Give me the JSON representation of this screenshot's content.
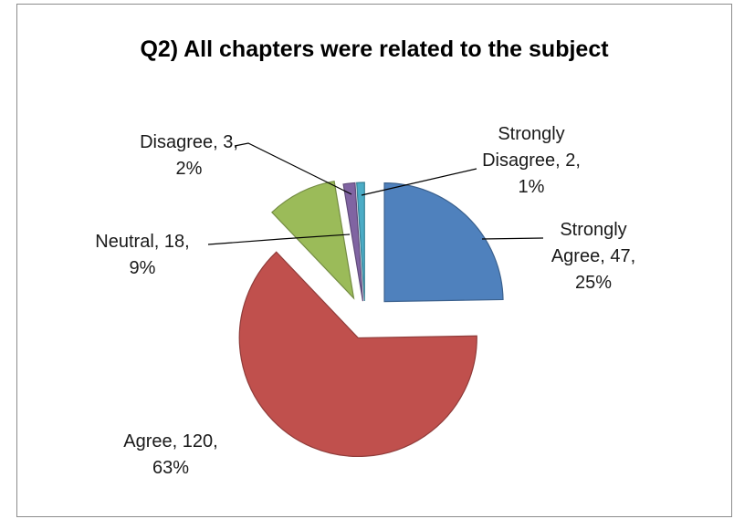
{
  "chart_data": {
    "type": "pie",
    "title": "Q2) All chapters were related to the subject",
    "categories": [
      "Strongly Agree",
      "Agree",
      "Neutral",
      "Disagree",
      "Strongly Disagree"
    ],
    "values": [
      47,
      120,
      18,
      3,
      2
    ],
    "percent_labels": [
      "25%",
      "63%",
      "9%",
      "2%",
      "1%"
    ],
    "data_labels": [
      [
        "Strongly",
        "Agree, 47,",
        "25%"
      ],
      [
        "Agree, 120,",
        "63%"
      ],
      [
        "Neutral, 18,",
        "9%"
      ],
      [
        "Disagree, 3,",
        "2%"
      ],
      [
        "Strongly",
        "Disagree, 2,",
        "1%"
      ]
    ],
    "colors": [
      "#4F81BD",
      "#C0504D",
      "#9BBB59",
      "#8064A2",
      "#4BACC6"
    ],
    "exploded": true,
    "legend": "none"
  }
}
